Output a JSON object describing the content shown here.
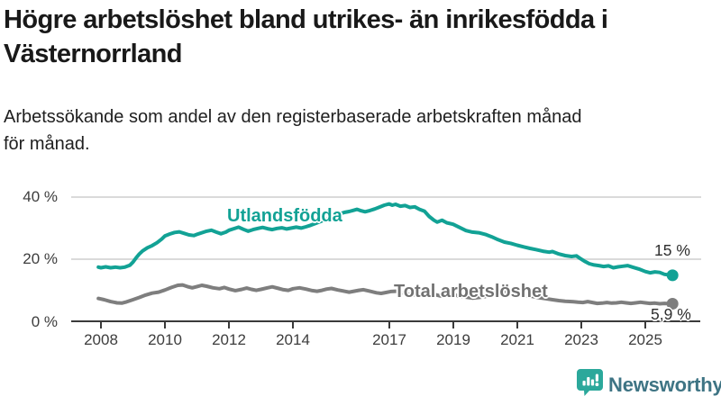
{
  "page": {
    "title": "Högre arbetslöshet bland utrikes- än inrikesfödda i Västernorrland",
    "title_lines": [
      "Högre arbetslöshet bland utrikes- än inrikesfödda i",
      "Västernorrland"
    ],
    "subtitle": "Arbetssökande som andel av den registerbaserade arbetskraften månad för månad.",
    "subtitle_lines": [
      "Arbetssökande som andel av den registerbaserade arbetskraften månad",
      "för månad."
    ]
  },
  "footer": {
    "brand": "Newsworthy"
  },
  "colors": {
    "teal": "#12A295",
    "gray": "#7E7E7E",
    "gray_label": "#717171",
    "axis": "#3A3A3A",
    "grid": "#DADADA",
    "end_label": "#2E2E2E",
    "brand_text": "#3E7484",
    "brand_icon": "#2BA89B"
  },
  "chart_data": {
    "type": "line",
    "title": "Högre arbetslöshet bland utrikes- än inrikesfödda i Västernorrland",
    "subtitle": "Arbetssökande som andel av den registerbaserade arbetskraften månad för månad.",
    "xlabel": "",
    "ylabel": "",
    "grid": true,
    "xlim": [
      2007.9,
      2026.0
    ],
    "ylim": [
      0,
      43
    ],
    "y_ticks": [
      {
        "label": "40 %",
        "value": 40
      },
      {
        "label": "20 %",
        "value": 20
      },
      {
        "label": "0 %",
        "value": 0
      }
    ],
    "x_ticks": [
      {
        "label": "2008",
        "year": 2008
      },
      {
        "label": "2010",
        "year": 2010
      },
      {
        "label": "2012",
        "year": 2012
      },
      {
        "label": "2014",
        "year": 2014
      },
      {
        "label": "2017",
        "year": 2017
      },
      {
        "label": "2019",
        "year": 2019
      },
      {
        "label": "2021",
        "year": 2021
      },
      {
        "label": "2023",
        "year": 2023
      },
      {
        "label": "2025",
        "year": 2025
      }
    ],
    "series": [
      {
        "name": "Utlandsfödda",
        "data_name": "utlandsfodda",
        "color": "#12A295",
        "end_label": "15 %",
        "end_value": 15.0,
        "points": [
          [
            2007.92,
            17.6
          ],
          [
            2008.0,
            17.4
          ],
          [
            2008.15,
            17.7
          ],
          [
            2008.3,
            17.4
          ],
          [
            2008.45,
            17.6
          ],
          [
            2008.6,
            17.4
          ],
          [
            2008.75,
            17.6
          ],
          [
            2008.9,
            18.2
          ],
          [
            2009.0,
            19.2
          ],
          [
            2009.1,
            20.6
          ],
          [
            2009.2,
            21.8
          ],
          [
            2009.3,
            22.8
          ],
          [
            2009.45,
            23.8
          ],
          [
            2009.6,
            24.5
          ],
          [
            2009.75,
            25.4
          ],
          [
            2009.9,
            26.6
          ],
          [
            2010.0,
            27.6
          ],
          [
            2010.15,
            28.2
          ],
          [
            2010.3,
            28.7
          ],
          [
            2010.45,
            28.9
          ],
          [
            2010.6,
            28.4
          ],
          [
            2010.75,
            27.9
          ],
          [
            2010.9,
            27.7
          ],
          [
            2011.0,
            28.1
          ],
          [
            2011.15,
            28.6
          ],
          [
            2011.3,
            29.1
          ],
          [
            2011.45,
            29.4
          ],
          [
            2011.6,
            28.8
          ],
          [
            2011.75,
            28.3
          ],
          [
            2011.9,
            28.8
          ],
          [
            2012.0,
            29.4
          ],
          [
            2012.15,
            29.9
          ],
          [
            2012.3,
            30.4
          ],
          [
            2012.45,
            29.7
          ],
          [
            2012.6,
            29.1
          ],
          [
            2012.75,
            29.6
          ],
          [
            2012.9,
            30.0
          ],
          [
            2013.05,
            30.3
          ],
          [
            2013.2,
            29.9
          ],
          [
            2013.35,
            29.6
          ],
          [
            2013.5,
            30.0
          ],
          [
            2013.65,
            30.2
          ],
          [
            2013.8,
            29.8
          ],
          [
            2013.95,
            30.1
          ],
          [
            2014.1,
            30.4
          ],
          [
            2014.25,
            30.1
          ],
          [
            2014.4,
            30.5
          ],
          [
            2014.55,
            31.0
          ],
          [
            2014.7,
            31.6
          ],
          [
            2014.85,
            32.2
          ],
          [
            2015.0,
            32.8
          ],
          [
            2015.15,
            33.4
          ],
          [
            2015.3,
            34.0
          ],
          [
            2015.45,
            34.6
          ],
          [
            2015.6,
            35.1
          ],
          [
            2015.75,
            35.4
          ],
          [
            2015.9,
            35.8
          ],
          [
            2016.0,
            36.1
          ],
          [
            2016.1,
            35.7
          ],
          [
            2016.25,
            35.3
          ],
          [
            2016.4,
            35.7
          ],
          [
            2016.55,
            36.2
          ],
          [
            2016.7,
            36.8
          ],
          [
            2016.85,
            37.4
          ],
          [
            2017.0,
            37.8
          ],
          [
            2017.1,
            37.4
          ],
          [
            2017.2,
            37.7
          ],
          [
            2017.35,
            37.1
          ],
          [
            2017.5,
            37.3
          ],
          [
            2017.65,
            36.7
          ],
          [
            2017.8,
            36.9
          ],
          [
            2017.95,
            36.1
          ],
          [
            2018.1,
            35.5
          ],
          [
            2018.25,
            33.8
          ],
          [
            2018.4,
            32.6
          ],
          [
            2018.5,
            32.0
          ],
          [
            2018.65,
            32.6
          ],
          [
            2018.8,
            31.8
          ],
          [
            2019.0,
            31.3
          ],
          [
            2019.2,
            30.3
          ],
          [
            2019.4,
            29.3
          ],
          [
            2019.6,
            28.8
          ],
          [
            2019.8,
            28.6
          ],
          [
            2020.0,
            28.1
          ],
          [
            2020.2,
            27.3
          ],
          [
            2020.4,
            26.4
          ],
          [
            2020.6,
            25.6
          ],
          [
            2020.8,
            25.2
          ],
          [
            2021.0,
            24.6
          ],
          [
            2021.2,
            24.1
          ],
          [
            2021.4,
            23.6
          ],
          [
            2021.6,
            23.2
          ],
          [
            2021.8,
            22.7
          ],
          [
            2022.0,
            22.4
          ],
          [
            2022.1,
            22.6
          ],
          [
            2022.3,
            21.8
          ],
          [
            2022.5,
            21.3
          ],
          [
            2022.7,
            21.0
          ],
          [
            2022.85,
            21.2
          ],
          [
            2022.95,
            20.5
          ],
          [
            2023.1,
            19.5
          ],
          [
            2023.25,
            18.7
          ],
          [
            2023.4,
            18.3
          ],
          [
            2023.55,
            18.1
          ],
          [
            2023.7,
            17.8
          ],
          [
            2023.85,
            18.0
          ],
          [
            2024.0,
            17.4
          ],
          [
            2024.15,
            17.7
          ],
          [
            2024.3,
            17.9
          ],
          [
            2024.45,
            18.1
          ],
          [
            2024.6,
            17.6
          ],
          [
            2024.8,
            17.0
          ],
          [
            2025.0,
            16.2
          ],
          [
            2025.15,
            15.8
          ],
          [
            2025.3,
            16.1
          ],
          [
            2025.45,
            15.9
          ],
          [
            2025.6,
            15.3
          ],
          [
            2025.75,
            15.1
          ],
          [
            2025.85,
            15.0
          ]
        ]
      },
      {
        "name": "Total arbetslöshet",
        "data_name": "total-arbetsloshet",
        "color": "#7E7E7E",
        "end_label": "5,9 %",
        "end_value": 5.9,
        "points": [
          [
            2007.92,
            7.6
          ],
          [
            2008.1,
            7.2
          ],
          [
            2008.3,
            6.6
          ],
          [
            2008.5,
            6.2
          ],
          [
            2008.65,
            6.1
          ],
          [
            2008.8,
            6.5
          ],
          [
            2009.0,
            7.2
          ],
          [
            2009.2,
            7.9
          ],
          [
            2009.4,
            8.7
          ],
          [
            2009.6,
            9.3
          ],
          [
            2009.8,
            9.6
          ],
          [
            2010.0,
            10.3
          ],
          [
            2010.2,
            11.1
          ],
          [
            2010.4,
            11.8
          ],
          [
            2010.55,
            11.9
          ],
          [
            2010.7,
            11.4
          ],
          [
            2010.85,
            11.0
          ],
          [
            2011.0,
            11.4
          ],
          [
            2011.15,
            11.8
          ],
          [
            2011.3,
            11.5
          ],
          [
            2011.5,
            11.0
          ],
          [
            2011.7,
            10.7
          ],
          [
            2011.85,
            11.1
          ],
          [
            2012.0,
            10.6
          ],
          [
            2012.2,
            10.1
          ],
          [
            2012.4,
            10.5
          ],
          [
            2012.55,
            10.9
          ],
          [
            2012.7,
            10.5
          ],
          [
            2012.85,
            10.2
          ],
          [
            2013.0,
            10.5
          ],
          [
            2013.2,
            11.0
          ],
          [
            2013.35,
            11.3
          ],
          [
            2013.55,
            10.8
          ],
          [
            2013.7,
            10.4
          ],
          [
            2013.85,
            10.2
          ],
          [
            2014.0,
            10.7
          ],
          [
            2014.2,
            11.0
          ],
          [
            2014.4,
            10.6
          ],
          [
            2014.6,
            10.1
          ],
          [
            2014.75,
            9.9
          ],
          [
            2014.9,
            10.2
          ],
          [
            2015.05,
            10.6
          ],
          [
            2015.2,
            10.8
          ],
          [
            2015.4,
            10.3
          ],
          [
            2015.6,
            9.9
          ],
          [
            2015.75,
            9.6
          ],
          [
            2015.9,
            9.9
          ],
          [
            2016.05,
            10.2
          ],
          [
            2016.2,
            10.4
          ],
          [
            2016.4,
            9.9
          ],
          [
            2016.6,
            9.4
          ],
          [
            2016.75,
            9.2
          ],
          [
            2016.9,
            9.5
          ],
          [
            2017.05,
            9.8
          ],
          [
            2017.2,
            9.9
          ],
          [
            2017.4,
            9.5
          ],
          [
            2017.6,
            9.0
          ],
          [
            2017.8,
            8.8
          ],
          [
            2018.0,
            9.2
          ],
          [
            2018.2,
            9.4
          ],
          [
            2018.4,
            8.9
          ],
          [
            2018.6,
            8.4
          ],
          [
            2018.8,
            8.6
          ],
          [
            2019.0,
            8.8
          ],
          [
            2019.2,
            8.4
          ],
          [
            2019.4,
            8.0
          ],
          [
            2019.6,
            7.7
          ],
          [
            2019.8,
            7.9
          ],
          [
            2020.0,
            8.2
          ],
          [
            2020.2,
            9.3
          ],
          [
            2020.35,
            9.9
          ],
          [
            2020.5,
            10.1
          ],
          [
            2020.7,
            9.7
          ],
          [
            2020.9,
            9.3
          ],
          [
            2021.1,
            8.9
          ],
          [
            2021.3,
            8.6
          ],
          [
            2021.5,
            8.2
          ],
          [
            2021.7,
            7.8
          ],
          [
            2021.9,
            7.5
          ],
          [
            2022.1,
            7.2
          ],
          [
            2022.3,
            6.9
          ],
          [
            2022.5,
            6.7
          ],
          [
            2022.7,
            6.6
          ],
          [
            2022.9,
            6.4
          ],
          [
            2023.05,
            6.3
          ],
          [
            2023.2,
            6.6
          ],
          [
            2023.35,
            6.3
          ],
          [
            2023.5,
            6.0
          ],
          [
            2023.65,
            6.1
          ],
          [
            2023.8,
            6.3
          ],
          [
            2023.95,
            6.1
          ],
          [
            2024.1,
            6.2
          ],
          [
            2024.25,
            6.4
          ],
          [
            2024.4,
            6.2
          ],
          [
            2024.55,
            6.0
          ],
          [
            2024.7,
            6.2
          ],
          [
            2024.85,
            6.4
          ],
          [
            2025.0,
            6.2
          ],
          [
            2025.15,
            6.0
          ],
          [
            2025.3,
            6.1
          ],
          [
            2025.45,
            5.9
          ],
          [
            2025.6,
            6.0
          ],
          [
            2025.75,
            5.9
          ],
          [
            2025.85,
            5.9
          ]
        ]
      }
    ]
  }
}
